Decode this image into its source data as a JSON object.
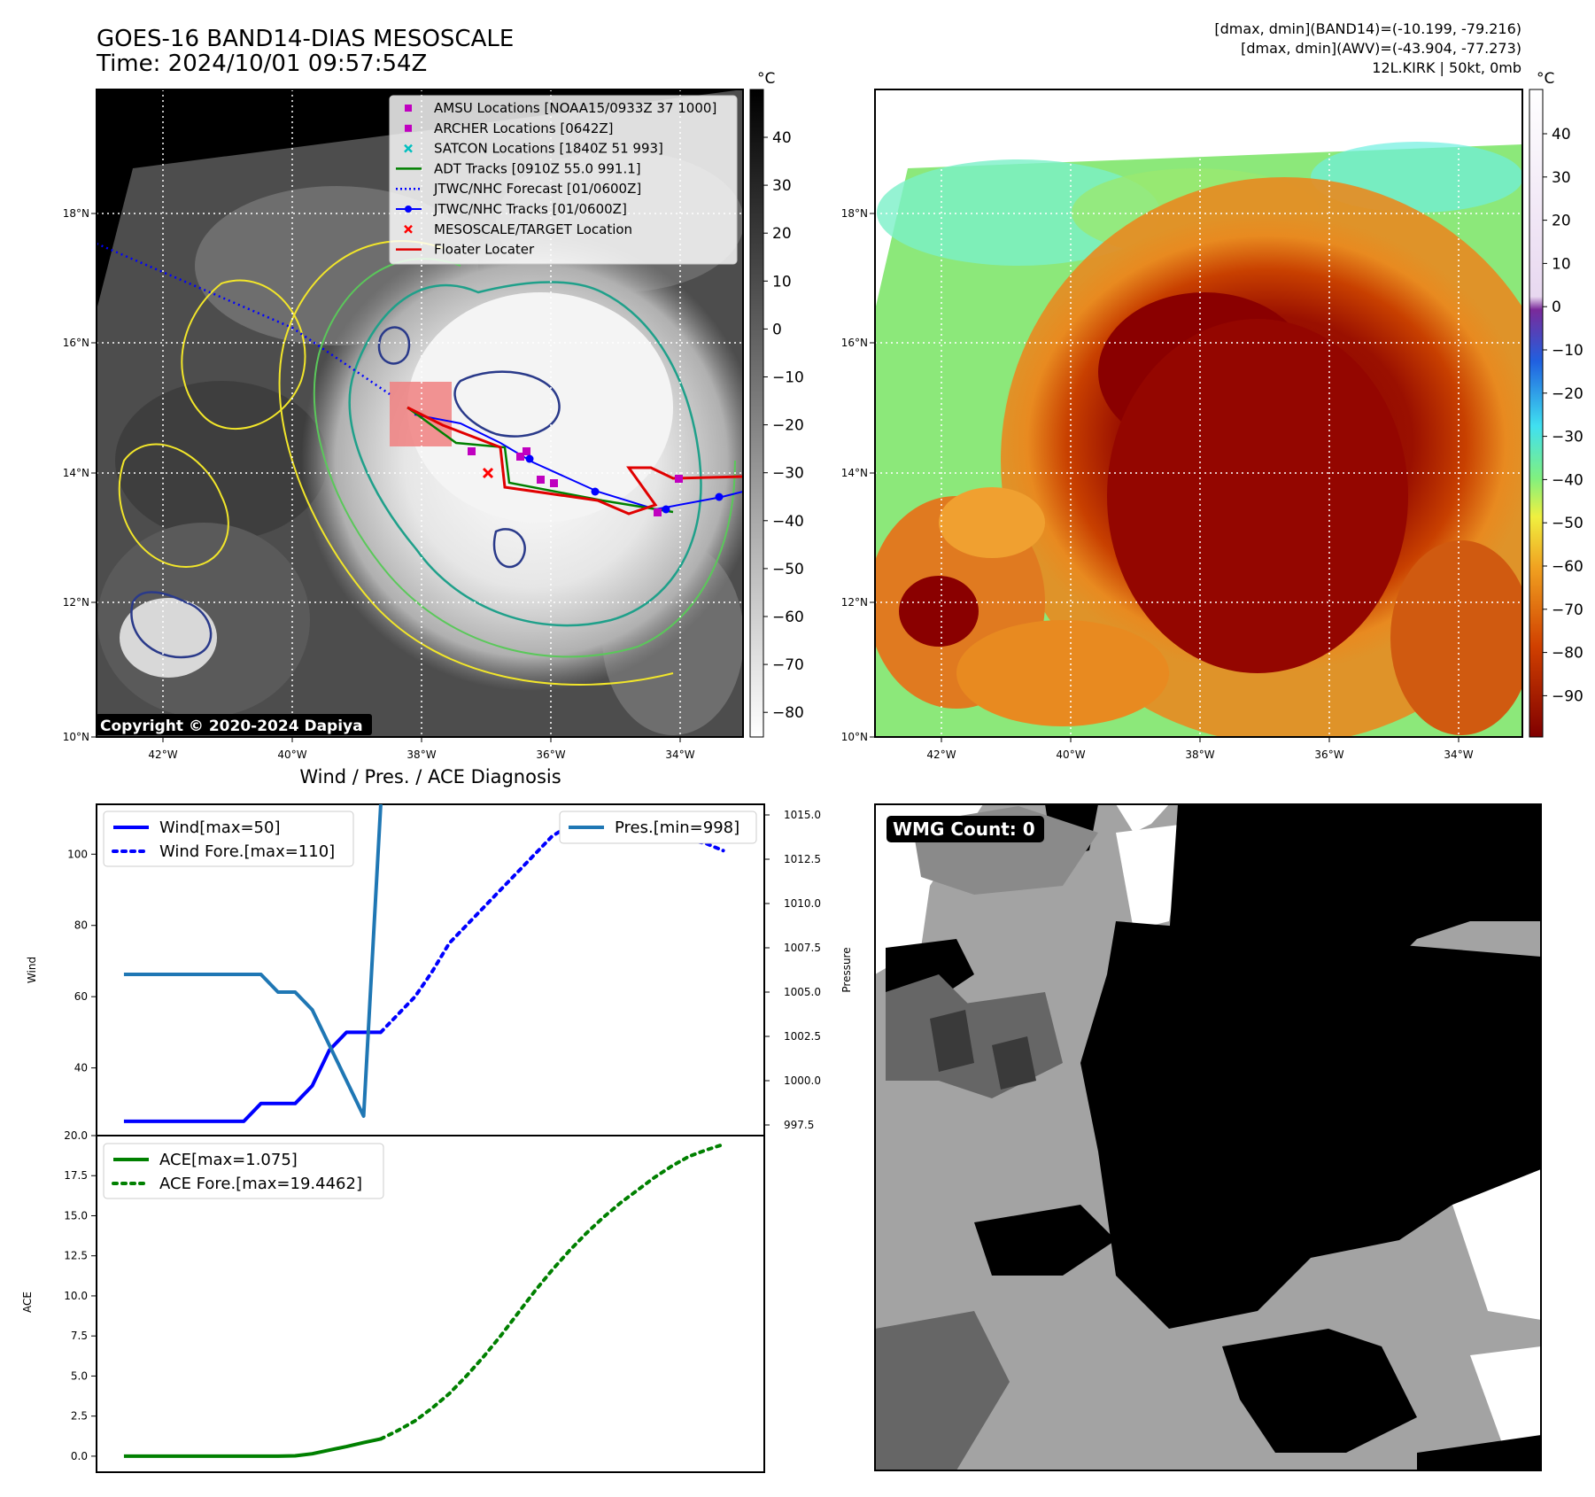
{
  "header": {
    "title_line1": "GOES-16 BAND14-DIAS MESOSCALE",
    "title_line2": "Time: 2024/10/01 09:57:54Z",
    "info_line1": "[dmax, dmin](BAND14)=(-10.199, -79.216)",
    "info_line2": "[dmax, dmin](AWV)=(-43.904, -77.273)",
    "info_line3": "12L.KIRK | 50kt, 0mb"
  },
  "map_axes": {
    "lon_labels": [
      "42°W",
      "40°W",
      "38°W",
      "36°W",
      "34°W"
    ],
    "lat_labels": [
      "18°N",
      "16°N",
      "14°N",
      "12°N",
      "10°N"
    ]
  },
  "ir_colorbar": {
    "unit": "°C",
    "ticks": [
      "40",
      "30",
      "20",
      "10",
      "0",
      "−10",
      "−20",
      "−30",
      "−40",
      "−50",
      "−60",
      "−70",
      "−80"
    ]
  },
  "awv_colorbar": {
    "unit": "°C",
    "ticks": [
      "40",
      "30",
      "20",
      "10",
      "0",
      "−10",
      "−20",
      "−30",
      "−40",
      "−50",
      "−60",
      "−70",
      "−80",
      "−90"
    ]
  },
  "map_legend": {
    "items": [
      {
        "label": "AMSU Locations [NOAA15/0933Z 37 1000]",
        "marker": "square",
        "color": "#c000c0"
      },
      {
        "label": "ARCHER Locations [0642Z]",
        "marker": "square",
        "color": "#c000c0"
      },
      {
        "label": "SATCON Locations [1840Z 51 993]",
        "marker": "x",
        "color": "#00bfbf"
      },
      {
        "label": "ADT Tracks [0910Z 55.0 991.1]",
        "marker": "line",
        "color": "#008000"
      },
      {
        "label": "JTWC/NHC Forecast [01/0600Z]",
        "marker": "dotted",
        "color": "#0000ff"
      },
      {
        "label": "JTWC/NHC Tracks [01/0600Z]",
        "marker": "line-dot",
        "color": "#0000ff"
      },
      {
        "label": "MESOSCALE/TARGET Location",
        "marker": "x",
        "color": "#ff0000"
      },
      {
        "label": "Floater Locater",
        "marker": "line",
        "color": "#e00000"
      }
    ]
  },
  "copyright": "Copyright © 2020-2024 Dapiya",
  "diagnosis_title": "Wind / Pres. / ACE Diagnosis",
  "wmg_label": "WMG Count: 0",
  "chart_data": [
    {
      "type": "line",
      "title": "Wind / Pres. / ACE Diagnosis",
      "ylabel": "Wind",
      "ylabel_right": "Pressure",
      "ylim": [
        21,
        114
      ],
      "ylim_right": [
        996.9,
        1015.6
      ],
      "yticks": [
        40,
        60,
        80,
        100
      ],
      "yticks_right": [
        997.5,
        1000.0,
        1002.5,
        1005.0,
        1007.5,
        1010.0,
        1012.5,
        1015.0
      ],
      "ytick_labels_right": [
        "997.5",
        "1000.0",
        "1002.5",
        "1005.0",
        "1007.5",
        "1010.0",
        "1012.5",
        "1015.0"
      ],
      "legend": [
        "Wind[max=50]",
        "Wind Fore.[max=110]",
        "Pres.[min=998]"
      ],
      "series": [
        {
          "name": "Wind[max=50]",
          "axis": "left",
          "style": "solid",
          "color": "#0000ff",
          "x": [
            0,
            1,
            2,
            3,
            4,
            5,
            6,
            7,
            8,
            9,
            10,
            11,
            12,
            13,
            14,
            15
          ],
          "y": [
            25,
            25,
            25,
            25,
            25,
            25,
            25,
            25,
            30,
            30,
            30,
            35,
            45,
            50,
            50,
            50
          ]
        },
        {
          "name": "Wind Fore.[max=110]",
          "axis": "left",
          "style": "dotted",
          "color": "#0000ff",
          "x": [
            15,
            16,
            17,
            18,
            19,
            20,
            21,
            22,
            23,
            24,
            25,
            26,
            27,
            28,
            29,
            30,
            31,
            32,
            33,
            34,
            35
          ],
          "y": [
            50,
            55,
            60,
            67,
            75,
            80,
            85,
            90,
            95,
            100,
            105,
            108,
            110,
            110,
            110,
            110,
            108,
            106,
            104,
            103,
            101
          ]
        },
        {
          "name": "Pres.[min=998]",
          "axis": "right",
          "style": "solid",
          "color": "#1f77b4",
          "x": [
            0,
            1,
            2,
            3,
            4,
            5,
            6,
            7,
            8,
            9,
            10,
            11,
            12,
            13,
            14,
            15
          ],
          "y": [
            1006,
            1006,
            1006,
            1006,
            1006,
            1006,
            1006,
            1006,
            1006,
            1005,
            1005,
            1004,
            1002,
            1000,
            998,
            1015.6
          ]
        }
      ]
    },
    {
      "type": "line",
      "ylabel": "ACE",
      "ylim": [
        -1.0,
        20.0
      ],
      "yticks": [
        0.0,
        2.5,
        5.0,
        7.5,
        10.0,
        12.5,
        15.0,
        17.5,
        20.0
      ],
      "ytick_labels": [
        "0.0",
        "2.5",
        "5.0",
        "7.5",
        "10.0",
        "12.5",
        "15.0",
        "17.5",
        "20.0"
      ],
      "legend": [
        "ACE[max=1.075]",
        "ACE Fore.[max=19.4462]"
      ],
      "series": [
        {
          "name": "ACE[max=1.075]",
          "style": "solid",
          "color": "#008000",
          "x": [
            0,
            1,
            2,
            3,
            4,
            5,
            6,
            7,
            8,
            9,
            10,
            11,
            12,
            13,
            14,
            15
          ],
          "y": [
            0,
            0,
            0,
            0,
            0,
            0,
            0,
            0,
            0,
            0,
            0.02,
            0.15,
            0.38,
            0.6,
            0.85,
            1.075
          ]
        },
        {
          "name": "ACE Fore.[max=19.4462]",
          "style": "dotted",
          "color": "#008000",
          "x": [
            15,
            16,
            17,
            18,
            19,
            20,
            21,
            22,
            23,
            24,
            25,
            26,
            27,
            28,
            29,
            30,
            31,
            32,
            33,
            34,
            35
          ],
          "y": [
            1.075,
            1.6,
            2.2,
            3.0,
            3.9,
            5.0,
            6.2,
            7.5,
            8.9,
            10.3,
            11.6,
            12.8,
            13.9,
            14.9,
            15.8,
            16.6,
            17.4,
            18.1,
            18.7,
            19.1,
            19.4462
          ]
        }
      ]
    }
  ]
}
